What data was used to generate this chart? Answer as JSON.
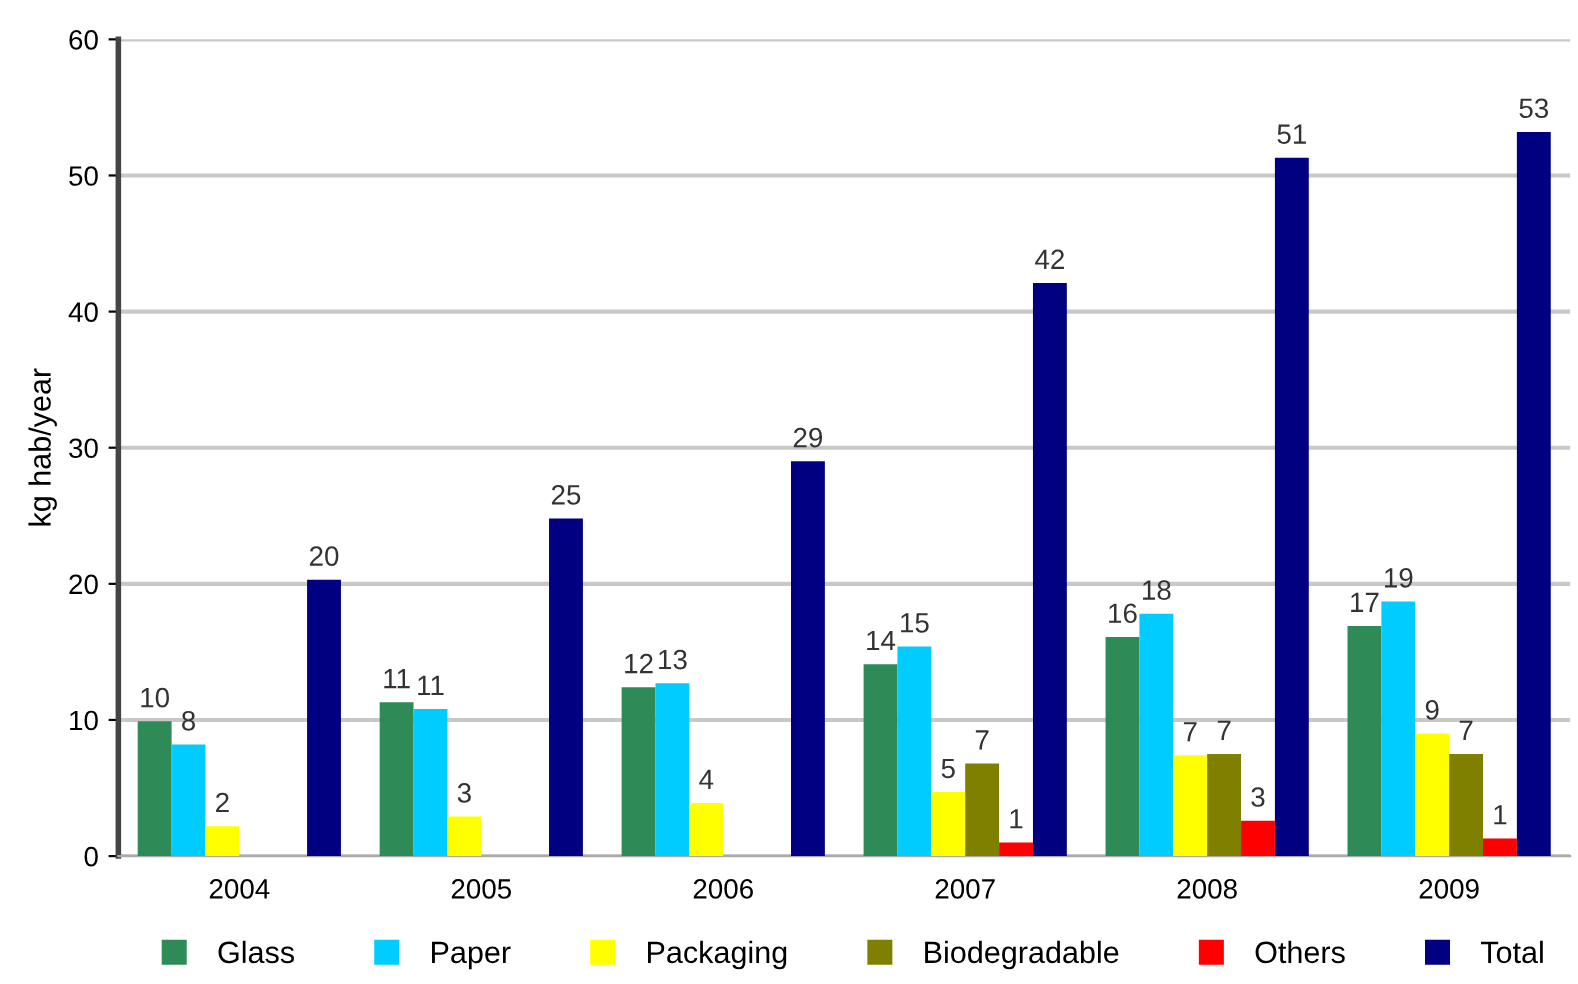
{
  "chart_data": {
    "type": "bar",
    "ylabel": "kg hab/year",
    "categories": [
      "2004",
      "2005",
      "2006",
      "2007",
      "2008",
      "2009"
    ],
    "series": [
      {
        "name": "Glass",
        "color": "#2e8b57",
        "values": [
          9.9,
          11.3,
          12.4,
          14.1,
          16.1,
          16.9
        ],
        "value_labels": [
          "10",
          "11",
          "12",
          "14",
          "16",
          "17"
        ]
      },
      {
        "name": "Paper",
        "color": "#00ccff",
        "values": [
          8.2,
          10.8,
          12.7,
          15.4,
          17.8,
          18.7
        ],
        "value_labels": [
          "8",
          "11",
          "13",
          "15",
          "18",
          "19"
        ]
      },
      {
        "name": "Packaging",
        "color": "#ffff00",
        "values": [
          2.2,
          2.9,
          3.9,
          4.7,
          7.4,
          9.0
        ],
        "value_labels": [
          "2",
          "3",
          "4",
          "5",
          "7",
          "9"
        ]
      },
      {
        "name": "Biodegradable",
        "color": "#808000",
        "values": [
          null,
          null,
          null,
          6.8,
          7.5,
          7.5
        ],
        "value_labels": [
          null,
          null,
          null,
          "7",
          "7",
          "7"
        ]
      },
      {
        "name": "Others",
        "color": "#ff0000",
        "values": [
          null,
          null,
          null,
          1.0,
          2.6,
          1.3
        ],
        "value_labels": [
          null,
          null,
          null,
          "1",
          "3",
          "1"
        ]
      },
      {
        "name": "Total",
        "color": "#000080",
        "values": [
          20.3,
          24.8,
          29.0,
          42.1,
          51.3,
          53.2
        ],
        "value_labels": [
          "20",
          "25",
          "29",
          "42",
          "51",
          "53"
        ]
      }
    ],
    "ylim": [
      0,
      60
    ],
    "yticks": [
      0,
      10,
      20,
      30,
      40,
      50,
      60
    ],
    "grid": "y",
    "legend": "bottom"
  }
}
